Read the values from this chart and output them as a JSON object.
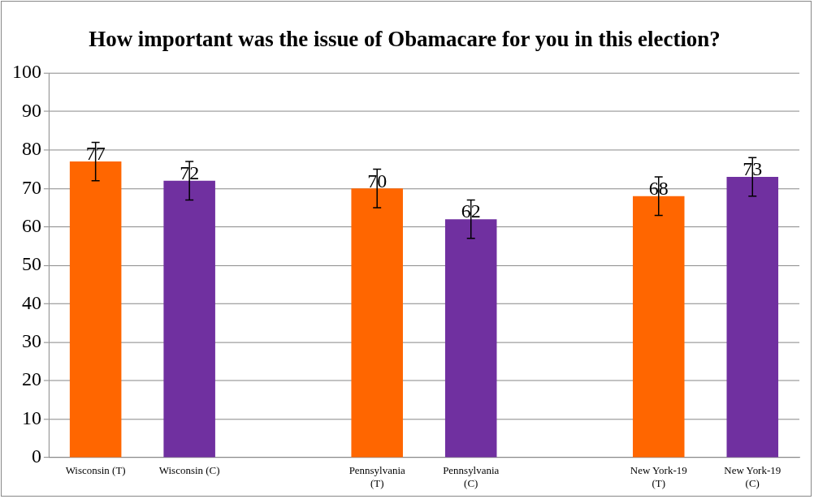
{
  "chart_data": {
    "type": "bar",
    "title": "How important was the issue of Obamacare for you in this election?",
    "categories": [
      "Wisconsin (T)",
      "Wisconsin (C)",
      null,
      "Pennsylvania (T)",
      "Pennsylvania (C)",
      null,
      "New York-19 (T)",
      "New York-19 (C)"
    ],
    "values": [
      77,
      72,
      null,
      70,
      62,
      null,
      68,
      73
    ],
    "colors": [
      "#ff6600",
      "#7030a0",
      null,
      "#ff6600",
      "#7030a0",
      null,
      "#ff6600",
      "#7030a0"
    ],
    "errors": [
      5,
      5,
      null,
      5,
      5,
      null,
      5,
      5
    ],
    "ylim": [
      0,
      100
    ],
    "yticks": [
      0,
      10,
      20,
      30,
      40,
      50,
      60,
      70,
      80,
      90,
      100
    ],
    "grid": "y",
    "data_labels": true,
    "legend": false
  }
}
